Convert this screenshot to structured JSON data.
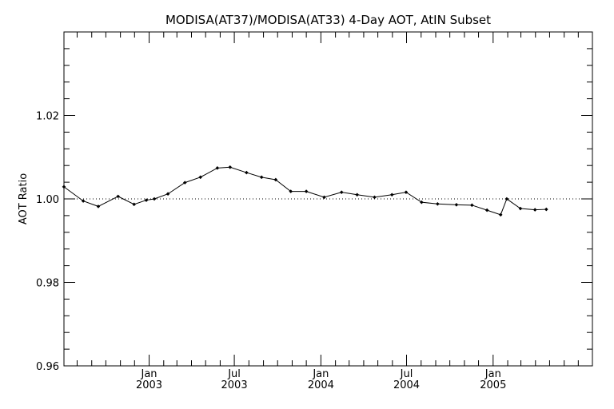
{
  "chart_data": {
    "type": "line",
    "title": "MODISA(AT37)/MODISA(AT33) 4-Day AOT, AtIN Subset",
    "ylabel": "AOT Ratio",
    "xlabel": "",
    "ylim": [
      0.96,
      1.04
    ],
    "yticks": [
      0.96,
      0.98,
      1.0,
      1.02
    ],
    "ytick_labels": [
      "0.96",
      "0.98",
      "1.00",
      "1.02"
    ],
    "xlim": [
      "2002-07-04",
      "2005-07-31"
    ],
    "xticks": [
      {
        "date": "2003-01-01",
        "month": "Jan",
        "year": "2003"
      },
      {
        "date": "2003-07-01",
        "month": "Jul",
        "year": "2003"
      },
      {
        "date": "2004-01-01",
        "month": "Jan",
        "year": "2004"
      },
      {
        "date": "2004-07-01",
        "month": "Jul",
        "year": "2004"
      },
      {
        "date": "2005-01-01",
        "month": "Jan",
        "year": "2005"
      }
    ],
    "reference_line": 1.0,
    "series": [
      {
        "marker": "diamond",
        "points": [
          {
            "x": "2002-07-04",
            "y": 1.0029
          },
          {
            "x": "2002-08-14",
            "y": 0.9995
          },
          {
            "x": "2002-09-15",
            "y": 0.9982
          },
          {
            "x": "2002-10-27",
            "y": 1.0006
          },
          {
            "x": "2002-11-30",
            "y": 0.9987
          },
          {
            "x": "2002-12-26",
            "y": 0.9997
          },
          {
            "x": "2003-01-12",
            "y": 1.0
          },
          {
            "x": "2003-02-10",
            "y": 1.0012
          },
          {
            "x": "2003-03-18",
            "y": 1.0039
          },
          {
            "x": "2003-04-20",
            "y": 1.0052
          },
          {
            "x": "2003-05-26",
            "y": 1.0074
          },
          {
            "x": "2003-06-22",
            "y": 1.0076
          },
          {
            "x": "2003-07-27",
            "y": 1.0063
          },
          {
            "x": "2003-08-28",
            "y": 1.0052
          },
          {
            "x": "2003-09-27",
            "y": 1.0046
          },
          {
            "x": "2003-10-29",
            "y": 1.0018
          },
          {
            "x": "2003-12-01",
            "y": 1.0018
          },
          {
            "x": "2004-01-08",
            "y": 1.0004
          },
          {
            "x": "2004-02-14",
            "y": 1.0016
          },
          {
            "x": "2004-03-18",
            "y": 1.001
          },
          {
            "x": "2004-04-24",
            "y": 1.0004
          },
          {
            "x": "2004-05-31",
            "y": 1.001
          },
          {
            "x": "2004-06-30",
            "y": 1.0016
          },
          {
            "x": "2004-08-02",
            "y": 0.9992
          },
          {
            "x": "2004-09-05",
            "y": 0.9988
          },
          {
            "x": "2004-10-15",
            "y": 0.9986
          },
          {
            "x": "2004-11-17",
            "y": 0.9985
          },
          {
            "x": "2004-12-19",
            "y": 0.9973
          },
          {
            "x": "2005-01-17",
            "y": 0.9962
          },
          {
            "x": "2005-01-30",
            "y": 1.0
          },
          {
            "x": "2005-02-28",
            "y": 0.9977
          },
          {
            "x": "2005-03-31",
            "y": 0.9974
          },
          {
            "x": "2005-04-24",
            "y": 0.9975
          }
        ]
      }
    ],
    "grid": false,
    "legend": "none"
  }
}
